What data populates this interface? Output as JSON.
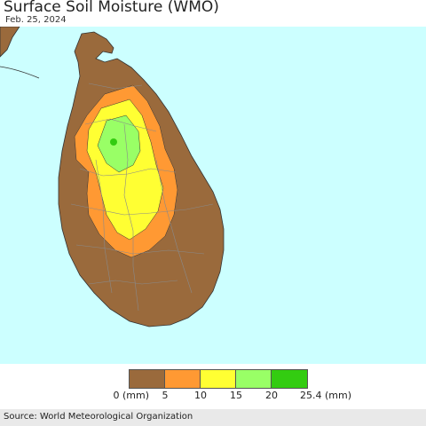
{
  "header": {
    "title": "Surface Soil Moisture (WMO)",
    "date": "Feb. 25, 2024"
  },
  "map": {
    "ocean_color": "#ccffff",
    "land_outside_color": "#9a6a3c"
  },
  "legend": {
    "colors": [
      "#9a6a3c",
      "#ff9933",
      "#ffff33",
      "#99ff66",
      "#33cc11"
    ],
    "tick_labels": [
      "0 (mm)",
      "5",
      "10",
      "15",
      "20",
      "25.4 (mm)"
    ]
  },
  "footer": {
    "source": "Source: World Meteorological Organization"
  }
}
